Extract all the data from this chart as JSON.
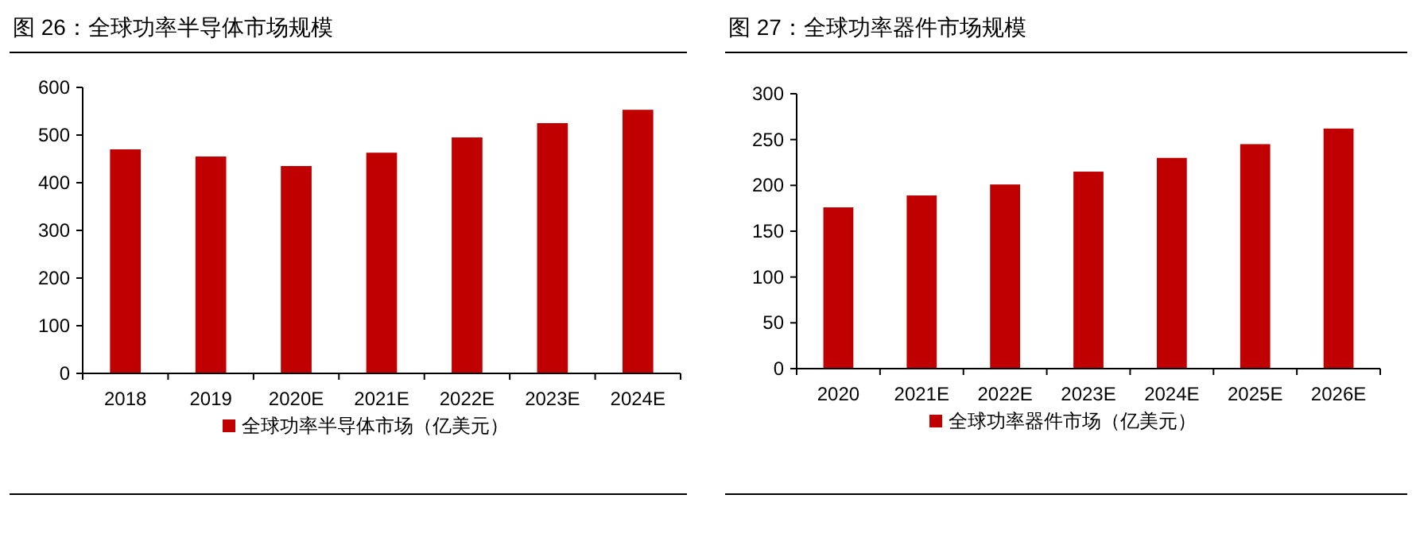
{
  "chart_data": [
    {
      "type": "bar",
      "title": "图 26：全球功率半导体市场规模",
      "categories": [
        "2018",
        "2019",
        "2020E",
        "2021E",
        "2022E",
        "2023E",
        "2024E"
      ],
      "series": [
        {
          "name": "全球功率半导体市场（亿美元）",
          "color": "#c00000",
          "values": [
            470,
            455,
            435,
            463,
            495,
            525,
            553
          ]
        }
      ],
      "ylim": [
        0,
        600
      ],
      "yticks": [
        0,
        100,
        200,
        300,
        400,
        500,
        600
      ],
      "grid": false,
      "legend": "bottom"
    },
    {
      "type": "bar",
      "title": "图 27：全球功率器件市场规模",
      "categories": [
        "2020",
        "2021E",
        "2022E",
        "2023E",
        "2024E",
        "2025E",
        "2026E"
      ],
      "series": [
        {
          "name": "全球功率器件市场（亿美元）",
          "color": "#c00000",
          "values": [
            176,
            189,
            201,
            215,
            230,
            245,
            262
          ]
        }
      ],
      "ylim": [
        0,
        300
      ],
      "yticks": [
        0,
        50,
        100,
        150,
        200,
        250,
        300
      ],
      "grid": false,
      "legend": "bottom"
    }
  ]
}
